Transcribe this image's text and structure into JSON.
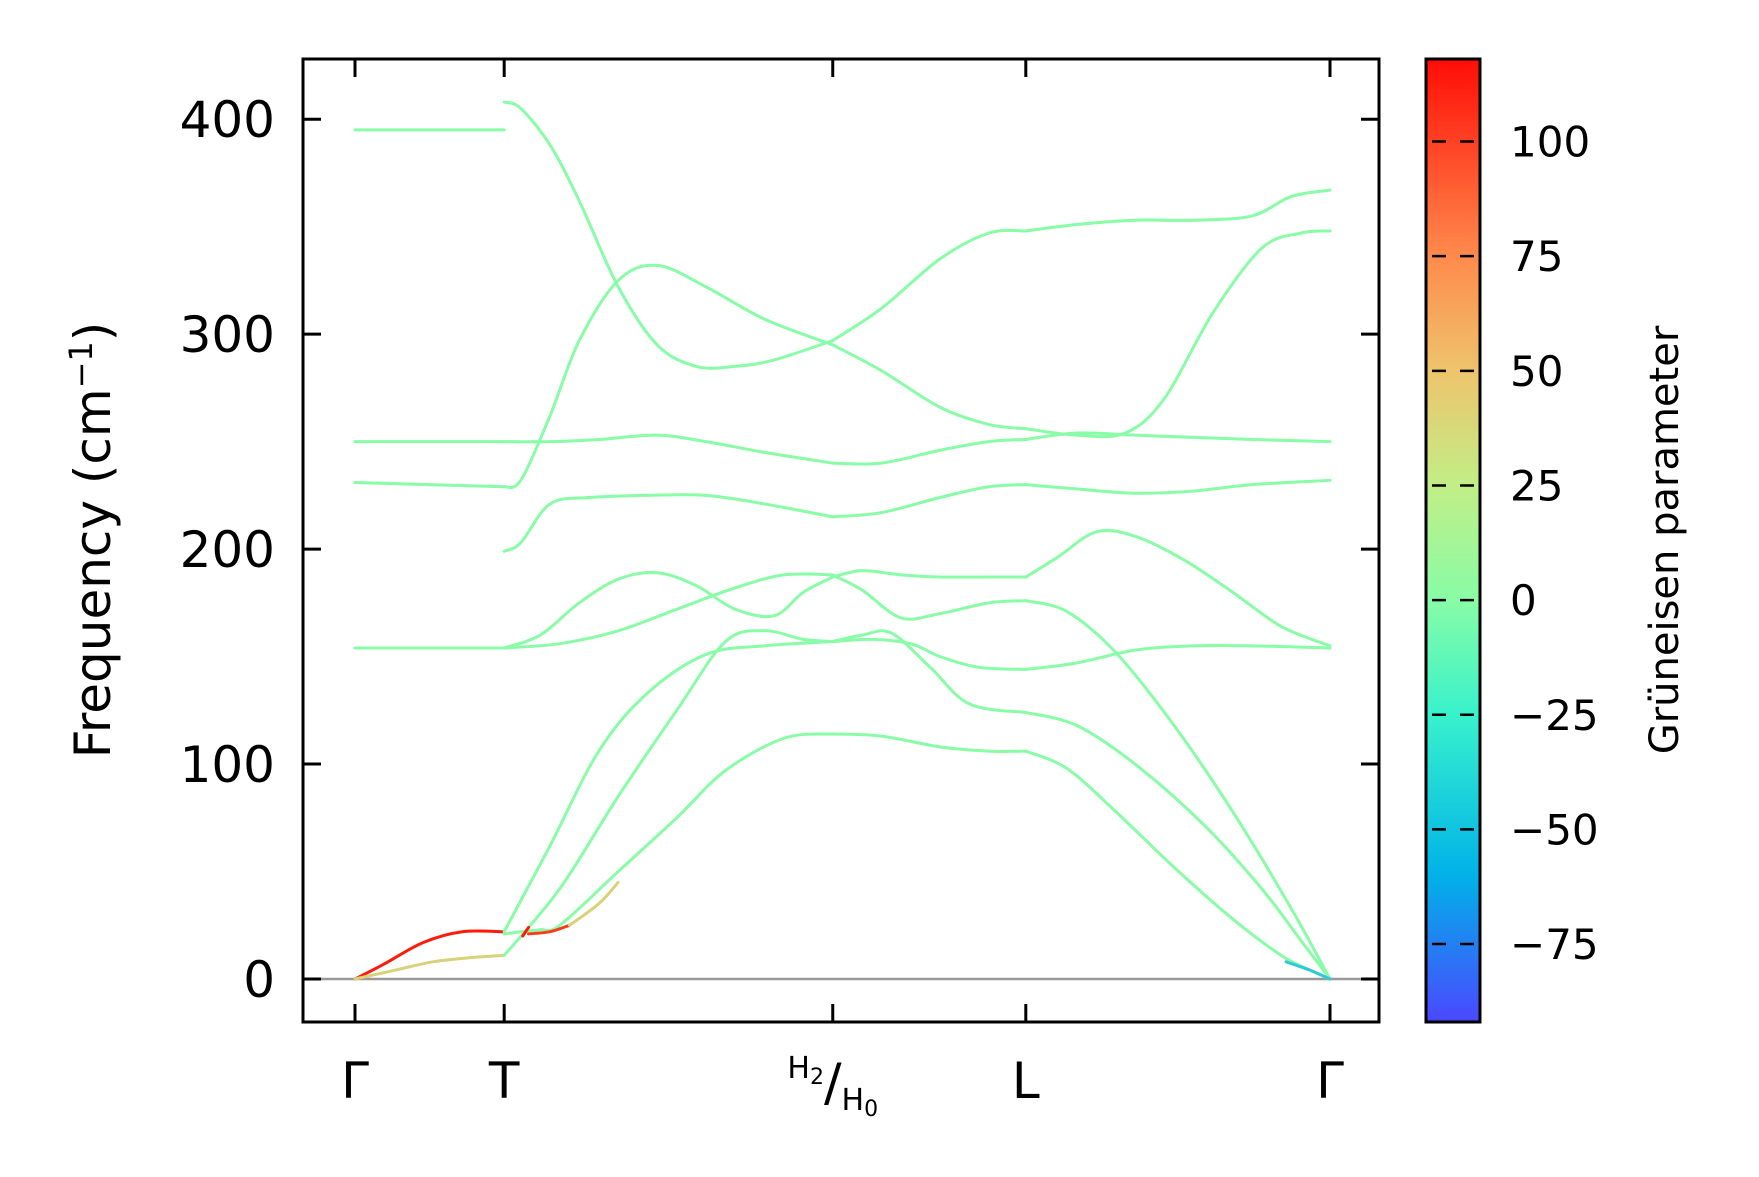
{
  "chart_data": {
    "type": "line",
    "ylabel": "Frequency (cm",
    "ylabel_sup": "−1",
    "ylabel_end": ")",
    "ylim": [
      -20,
      428
    ],
    "yticks": [
      {
        "value": 0,
        "label": "0"
      },
      {
        "value": 100,
        "label": "100"
      },
      {
        "value": 200,
        "label": "200"
      },
      {
        "value": 300,
        "label": "300"
      },
      {
        "value": 400,
        "label": "400"
      }
    ],
    "xlim": [
      -0.05,
      1.0
    ],
    "xticks": [
      {
        "pos": 0.0,
        "label": "Γ"
      },
      {
        "pos": 0.153,
        "label": "T"
      },
      {
        "pos": 0.49,
        "label": "H₂/H₀",
        "main": "H",
        "sub1": "2",
        "slash": "/",
        "main2": "H",
        "sub2": "0"
      },
      {
        "pos": 0.688,
        "label": "L"
      },
      {
        "pos": 1.0,
        "label": "Γ"
      }
    ],
    "colorbar": {
      "label": "Grüneisen parameter",
      "range": [
        -92,
        118
      ],
      "ticks": [
        {
          "value": 100,
          "label": "100"
        },
        {
          "value": 75,
          "label": "75"
        },
        {
          "value": 50,
          "label": "50"
        },
        {
          "value": 25,
          "label": "25"
        },
        {
          "value": 0,
          "label": "0"
        },
        {
          "value": -25,
          "label": "−25"
        },
        {
          "value": -50,
          "label": "−50"
        },
        {
          "value": -75,
          "label": "−75"
        }
      ],
      "stops": [
        {
          "v": -92,
          "color": "#4a48ff"
        },
        {
          "v": -60,
          "color": "#00b2e8"
        },
        {
          "v": -25,
          "color": "#38f2cc"
        },
        {
          "v": 0,
          "color": "#88fca6"
        },
        {
          "v": 25,
          "color": "#c2ee86"
        },
        {
          "v": 50,
          "color": "#eec46c"
        },
        {
          "v": 75,
          "color": "#ff8a4c"
        },
        {
          "v": 118,
          "color": "#ff0c06"
        }
      ]
    },
    "zero_line_color": "#999999",
    "band_color": "#88fca6",
    "segments": [
      {
        "name": "Γ-T",
        "bands": [
          {
            "x": [
              0,
              0.153
            ],
            "y": [
              395,
              395
            ]
          },
          {
            "x": [
              0,
              0.153
            ],
            "y": [
              250,
              250
            ]
          },
          {
            "x": [
              0,
              0.153
            ],
            "y": [
              231,
              229
            ]
          },
          {
            "x": [
              0,
              0.153
            ],
            "y": [
              154,
              154
            ]
          },
          {
            "x": [
              0,
              0.03,
              0.07,
              0.11,
              0.153
            ],
            "y": [
              0,
              7,
              17,
              22,
              22
            ],
            "color": "#ff1a0a"
          },
          {
            "x": [
              0,
              0.04,
              0.08,
              0.12,
              0.153
            ],
            "y": [
              0,
              4,
              8,
              10,
              11
            ],
            "color": "#d8d27a"
          }
        ]
      },
      {
        "name": "T-H",
        "bands": [
          {
            "x": [
              0.153,
              0.17,
              0.2,
              0.23,
              0.27,
              0.31,
              0.35,
              0.39,
              0.43,
              0.49
            ],
            "y": [
              408,
              405,
              388,
              362,
              322,
              295,
              285,
              285,
              288,
              297
            ]
          },
          {
            "x": [
              0.153,
              0.17,
              0.2,
              0.23,
              0.27,
              0.31,
              0.36,
              0.42,
              0.49
            ],
            "y": [
              229,
              232,
              262,
              297,
              325,
              332,
              322,
              307,
              295
            ]
          },
          {
            "x": [
              0.153,
              0.2,
              0.25,
              0.31,
              0.36,
              0.42,
              0.49
            ],
            "y": [
              250,
              250,
              251,
              253,
              250,
              245,
              240
            ]
          },
          {
            "x": [
              0.153,
              0.17,
              0.2,
              0.24,
              0.3,
              0.36,
              0.42,
              0.49
            ],
            "y": [
              199,
              203,
              221,
              224,
              225,
              225,
              221,
              215
            ]
          },
          {
            "x": [
              0.153,
              0.19,
              0.23,
              0.27,
              0.31,
              0.35,
              0.39,
              0.43,
              0.46,
              0.49
            ],
            "y": [
              154,
              160,
              175,
              186,
              189,
              183,
              172,
              169,
              180,
              187
            ]
          },
          {
            "x": [
              0.153,
              0.21,
              0.27,
              0.33,
              0.39,
              0.44,
              0.49
            ],
            "y": [
              154,
              156,
              162,
              172,
              182,
              188,
              188
            ]
          },
          {
            "x": [
              0.153,
              0.2,
              0.25,
              0.3,
              0.36,
              0.42,
              0.49
            ],
            "y": [
              22,
              62,
              106,
              133,
              151,
              155,
              157
            ]
          },
          {
            "x": [
              0.153,
              0.21,
              0.27,
              0.33,
              0.38,
              0.42,
              0.46,
              0.49
            ],
            "y": [
              11,
              42,
              85,
              125,
              157,
              162,
              158,
              157
            ]
          },
          {
            "x": [
              0.153,
              0.17,
              0.19,
              0.21,
              0.27,
              0.33,
              0.38,
              0.44,
              0.49
            ],
            "y": [
              21,
              22,
              23,
              25,
              50,
              75,
              97,
              112,
              114
            ]
          },
          {
            "x": [
              0.172,
              0.178
            ],
            "y": [
              20,
              24
            ],
            "color": "#ff1a0a"
          },
          {
            "x": [
              0.178,
              0.2,
              0.22
            ],
            "y": [
              21,
              22,
              25
            ],
            "color": "#ff3a18"
          },
          {
            "x": [
              0.22,
              0.25,
              0.27
            ],
            "y": [
              25,
              35,
              45
            ],
            "color": "#d8d27a"
          }
        ]
      },
      {
        "name": "H-L",
        "bands": [
          {
            "x": [
              0.49,
              0.54,
              0.6,
              0.65,
              0.688
            ],
            "y": [
              297,
              312,
              335,
              347,
              348
            ]
          },
          {
            "x": [
              0.49,
              0.54,
              0.6,
              0.65,
              0.688
            ],
            "y": [
              295,
              283,
              266,
              258,
              256
            ]
          },
          {
            "x": [
              0.49,
              0.54,
              0.6,
              0.65,
              0.688
            ],
            "y": [
              240,
              240,
              246,
              250,
              251
            ]
          },
          {
            "x": [
              0.49,
              0.54,
              0.6,
              0.65,
              0.688
            ],
            "y": [
              215,
              217,
              224,
              229,
              230
            ]
          },
          {
            "x": [
              0.49,
              0.52,
              0.56,
              0.6,
              0.65,
              0.688
            ],
            "y": [
              187,
              190,
              188,
              187,
              187,
              187
            ]
          },
          {
            "x": [
              0.49,
              0.52,
              0.56,
              0.6,
              0.65,
              0.688
            ],
            "y": [
              188,
              181,
              168,
              170,
              175,
              176
            ]
          },
          {
            "x": [
              0.49,
              0.53,
              0.57,
              0.6,
              0.64,
              0.688
            ],
            "y": [
              157,
              158,
              156,
              150,
              145,
              144
            ]
          },
          {
            "x": [
              0.49,
              0.52,
              0.55,
              0.59,
              0.63,
              0.688
            ],
            "y": [
              157,
              160,
              161,
              145,
              128,
              124
            ]
          },
          {
            "x": [
              0.49,
              0.54,
              0.6,
              0.65,
              0.688
            ],
            "y": [
              114,
              113,
              108,
              106,
              106
            ]
          }
        ]
      },
      {
        "name": "L-Γ",
        "bands": [
          {
            "x": [
              0.688,
              0.74,
              0.8,
              0.86,
              0.92,
              0.96,
              1.0
            ],
            "y": [
              348,
              351,
              353,
              353,
              355,
              364,
              367
            ]
          },
          {
            "x": [
              0.688,
              0.74,
              0.79,
              0.83,
              0.88,
              0.93,
              0.97,
              1.0
            ],
            "y": [
              256,
              253,
              254,
              270,
              310,
              340,
              347,
              348
            ]
          },
          {
            "x": [
              0.688,
              0.74,
              0.8,
              0.86,
              0.92,
              1.0
            ],
            "y": [
              251,
              254,
              253,
              252,
              251,
              250
            ]
          },
          {
            "x": [
              0.688,
              0.74,
              0.8,
              0.86,
              0.92,
              1.0
            ],
            "y": [
              230,
              228,
              226,
              227,
              230,
              232
            ]
          },
          {
            "x": [
              0.688,
              0.72,
              0.76,
              0.8,
              0.85,
              0.9,
              0.95,
              1.0
            ],
            "y": [
              187,
              196,
              208,
              206,
              195,
              180,
              164,
              155
            ]
          },
          {
            "x": [
              0.688,
              0.74,
              0.8,
              0.86,
              0.92,
              1.0
            ],
            "y": [
              144,
              147,
              153,
              155,
              155,
              154
            ]
          },
          {
            "x": [
              0.688,
              0.73,
              0.78,
              0.84,
              0.9,
              0.96,
              1.0
            ],
            "y": [
              176,
              171,
              152,
              118,
              78,
              33,
              0
            ]
          },
          {
            "x": [
              0.688,
              0.74,
              0.8,
              0.87,
              0.93,
              0.97,
              1.0
            ],
            "y": [
              124,
              118,
              100,
              72,
              42,
              18,
              0
            ]
          },
          {
            "x": [
              0.688,
              0.73,
              0.78,
              0.84,
              0.9,
              0.95,
              0.98,
              1.0
            ],
            "y": [
              106,
              98,
              78,
              52,
              28,
              11,
              4,
              0
            ]
          },
          {
            "x": [
              0.955,
              0.98,
              1.0
            ],
            "y": [
              8,
              4,
              0
            ],
            "color": "#33c8d8"
          }
        ]
      }
    ]
  }
}
